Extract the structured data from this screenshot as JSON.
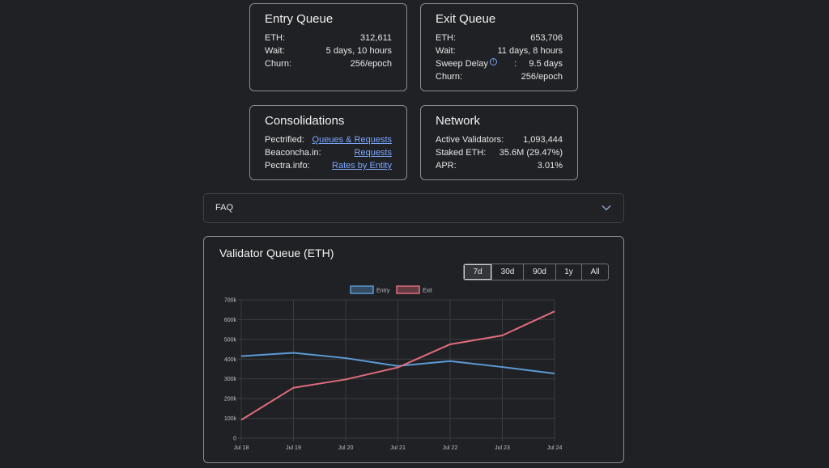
{
  "entry_queue": {
    "title": "Entry Queue",
    "rows": [
      {
        "label": "ETH:",
        "value": "312,611"
      },
      {
        "label": "Wait:",
        "value": "5 days, 10 hours"
      },
      {
        "label": "Churn:",
        "value": "256/epoch"
      }
    ]
  },
  "exit_queue": {
    "title": "Exit Queue",
    "rows": [
      {
        "label": "ETH:",
        "value": "653,706"
      },
      {
        "label": "Wait:",
        "value": "11 days, 8 hours"
      },
      {
        "label": "Sweep Delay",
        "info": "i",
        "value": ":     9.5 days"
      },
      {
        "label": "Churn:",
        "value": "256/epoch"
      }
    ]
  },
  "consolidations": {
    "title": "Consolidations",
    "rows": [
      {
        "label": "Pectrified:",
        "link": "Queues & Requests"
      },
      {
        "label": "Beaconcha.in:",
        "link": "Requests"
      },
      {
        "label": "Pectra.info:",
        "link": "Rates by Entity"
      }
    ]
  },
  "network": {
    "title": "Network",
    "rows": [
      {
        "label": "Active Validators:",
        "value": "1,093,444"
      },
      {
        "label": "Staked ETH:",
        "value": "35.6M (29.47%)"
      },
      {
        "label": "APR:",
        "value": "3.01%"
      }
    ]
  },
  "faq": {
    "label": "FAQ"
  },
  "chart_panel": {
    "title": "Validator Queue (ETH)",
    "ranges": [
      "7d",
      "30d",
      "90d",
      "1y",
      "All"
    ],
    "active_range": "7d"
  },
  "colors": {
    "entry": "#5b9bd5",
    "exit": "#e06c7d"
  },
  "chart_data": {
    "type": "line",
    "categories": [
      "Jul 18",
      "Jul 19",
      "Jul 20",
      "Jul 21",
      "Jul 22",
      "Jul 23",
      "Jul 24"
    ],
    "series": [
      {
        "name": "Entry",
        "values": [
          415000,
          432000,
          405000,
          365000,
          390000,
          360000,
          327000
        ]
      },
      {
        "name": "Exit",
        "values": [
          92000,
          255000,
          297000,
          358000,
          475000,
          520000,
          642000
        ]
      }
    ],
    "y_ticks": [
      "0",
      "100k",
      "200k",
      "300k",
      "400k",
      "500k",
      "600k",
      "700k"
    ],
    "ylim": [
      0,
      700000
    ],
    "grid": true,
    "legend": "top-center"
  }
}
